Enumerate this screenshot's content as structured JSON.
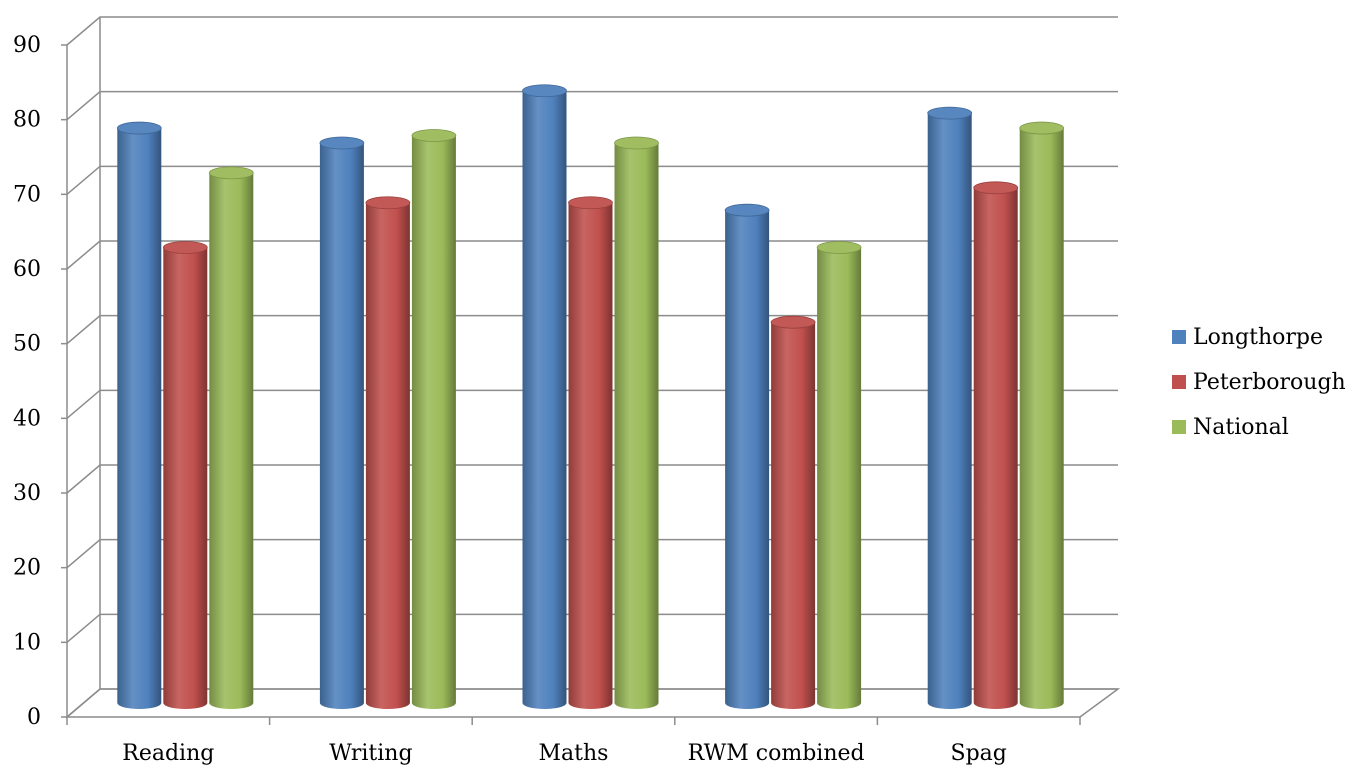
{
  "chart_data": {
    "type": "bar",
    "categories": [
      "Reading",
      "Writing",
      "Maths",
      "RWM combined",
      "Spag"
    ],
    "series": [
      {
        "name": "Longthorpe",
        "values": [
          77,
          75,
          82,
          66,
          79
        ],
        "color": "#4F81BD"
      },
      {
        "name": "Peterborough",
        "values": [
          61,
          67,
          67,
          51,
          69
        ],
        "color": "#C0504D"
      },
      {
        "name": "National",
        "values": [
          71,
          76,
          75,
          61,
          77
        ],
        "color": "#9BBB59"
      }
    ],
    "yticks": [
      0,
      10,
      20,
      30,
      40,
      50,
      60,
      70,
      80,
      90
    ],
    "ylim": [
      0,
      90
    ],
    "grid": true,
    "legend_position": "right",
    "style": "3d-cylinder"
  }
}
